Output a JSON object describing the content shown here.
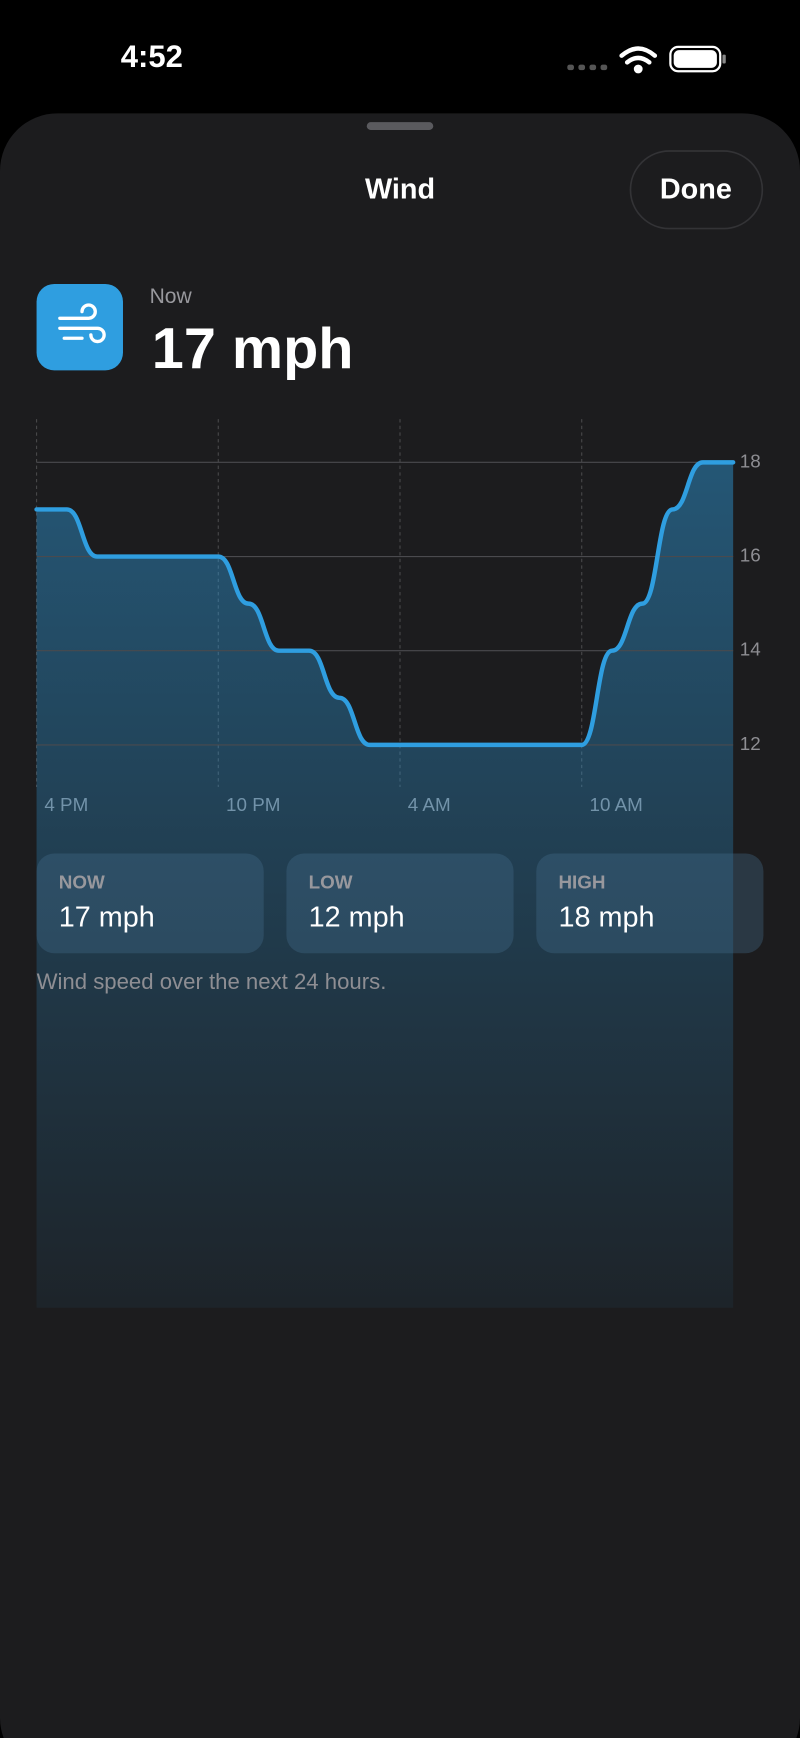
{
  "status_bar": {
    "time": "4:52"
  },
  "sheet": {
    "title": "Wind",
    "done_button": "Done"
  },
  "header": {
    "label": "Now",
    "value": "17 mph"
  },
  "chart_data": {
    "type": "line",
    "categories": [
      "4 PM",
      null,
      null,
      null,
      null,
      null,
      "10 PM",
      null,
      null,
      null,
      null,
      null,
      "4 AM",
      null,
      null,
      null,
      null,
      null,
      "10 AM",
      null,
      null,
      null,
      null,
      null
    ],
    "series": [
      {
        "color": "#2f9ee0",
        "values": [
          17,
          17,
          16,
          16,
          16,
          16,
          16,
          15,
          14,
          14,
          13,
          12,
          12,
          12,
          12,
          12,
          12,
          12,
          12,
          14,
          15,
          17,
          18,
          18
        ]
      }
    ],
    "ylim": [
      11,
      19
    ],
    "yticks": [
      12,
      14,
      16,
      18
    ],
    "grid": true
  },
  "stats": [
    {
      "label": "NOW",
      "value": "17 mph"
    },
    {
      "label": "LOW",
      "value": "12 mph"
    },
    {
      "label": "HIGH",
      "value": "18 mph"
    }
  ],
  "caption": "Wind speed over the next 24 hours."
}
